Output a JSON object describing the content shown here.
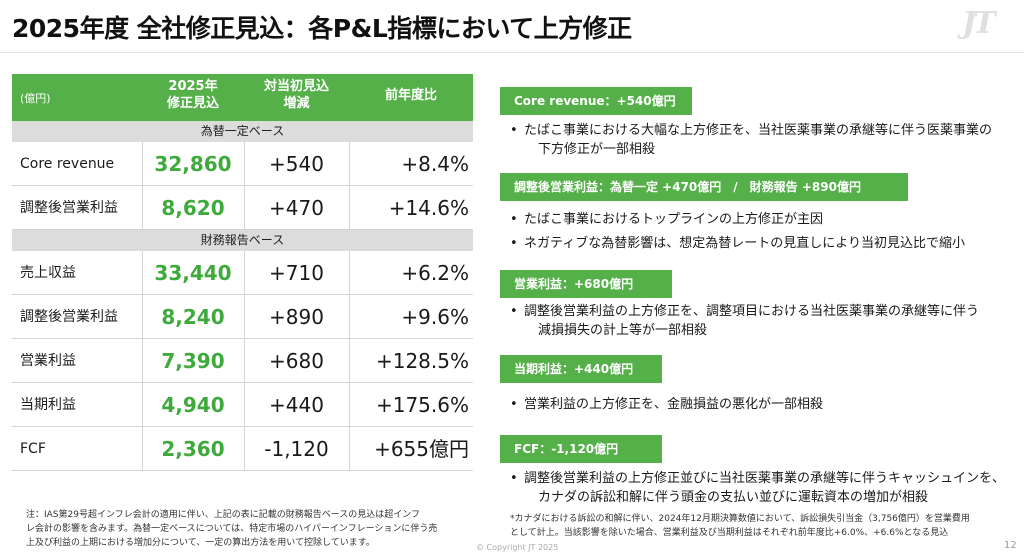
{
  "title": "2025年度 全社修正見込：各P&L指標において上方修正",
  "logo": "JT",
  "table": {
    "unit": "(億円)",
    "col1": [
      "2025年",
      "修正見込"
    ],
    "col2": [
      "対当初見込",
      "増減"
    ],
    "col3": "前年度比",
    "basis1": "為替一定ベース",
    "basis2": "財務報告ベース",
    "rows1": [
      {
        "label": "Core revenue",
        "value": "32,860",
        "change": "+540",
        "yoy": "+8.4%"
      },
      {
        "label": "調整後営業利益",
        "value": "8,620",
        "change": "+470",
        "yoy": "+14.6%"
      }
    ],
    "rows2": [
      {
        "label": "売上収益",
        "value": "33,440",
        "change": "+710",
        "yoy": "+6.2%"
      },
      {
        "label": "調整後営業利益",
        "value": "8,240",
        "change": "+890",
        "yoy": "+9.6%"
      },
      {
        "label": "営業利益",
        "value": "7,390",
        "change": "+680",
        "yoy": "+128.5%"
      },
      {
        "label": "当期利益",
        "value": "4,940",
        "change": "+440",
        "yoy": "+175.6%"
      },
      {
        "label": "FCF",
        "value": "2,360",
        "change": "-1,120",
        "yoy": "+655億円"
      }
    ]
  },
  "note": [
    "注：IAS第29号超インフレ会計の適用に伴い、上記の表に記載の財務報告ベースの見込は超インフ",
    "レ会計の影響を含みます。為替一定ベースについては、特定市場のハイパーインフレーションに伴う売",
    "上及び利益の上期における増加分について、一定の算出方法を用いて控除しています。"
  ],
  "copyright": "© Copyright JT 2025",
  "page_number": "12",
  "sections": [
    {
      "header": "Core revenue：+540億円",
      "bullets": [
        "たばこ事業における大幅な上方修正を、当社医薬事業の承継等に伴う医薬事業の",
        "下方修正が一部相殺"
      ]
    },
    {
      "header": "調整後営業利益：為替一定 +470億円　/　財務報告 +890億円",
      "bullets": [
        "たばこ事業におけるトップラインの上方修正が主因",
        "ネガティブな為替影響は、想定為替レートの見直しにより当初見込比で縮小"
      ]
    },
    {
      "header": "営業利益：+680億円",
      "bullets": [
        "調整後営業利益の上方修正を、調整項目における当社医薬事業の承継等に伴う",
        "減損損失の計上等が一部相殺"
      ]
    },
    {
      "header": "当期利益：+440億円",
      "bullets": [
        "営業利益の上方修正を、金融損益の悪化が一部相殺"
      ]
    },
    {
      "header": "FCF：-1,120億円",
      "bullets": [
        "調整後営業利益の上方修正並びに当社医薬事業の承継等に伴うキャッシュインを、",
        "カナダの訴訟和解に伴う頭金の支払い並びに運転資本の増加が相殺"
      ]
    }
  ],
  "footnote": [
    "*カナダにおける訴訟の和解に伴い、2024年12月期決算数値において、訴訟損失引当金（3,756億円）を営業費用",
    "として計上。当該影響を除いた場合、営業利益及び当期利益はそれぞれ前年度比+6.0%、+6.6%となる見込"
  ],
  "colors": {
    "green": "#55b04a",
    "value_green": "#3faa3c",
    "basis_gray": "#dcdcdc"
  }
}
